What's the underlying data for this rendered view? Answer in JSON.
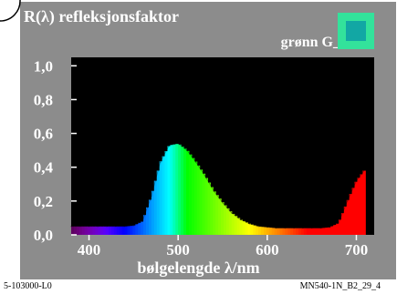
{
  "header": {
    "title": "R(λ) refleksjonsfaktor",
    "subtitle": "grønn G_"
  },
  "swatch": {
    "outer_color": "#33e29b",
    "inner_color": "#12a7a4"
  },
  "footer": {
    "left": "5-103000-L0",
    "right": "MN540-1N_B2_29_4"
  },
  "colors": {
    "panel": "#8c8c8c",
    "plot_bg": "#000000",
    "text": "#ffffff"
  },
  "chart_data": {
    "type": "area",
    "title": "R(λ) refleksjonsfaktor",
    "subtitle": "grønn G_",
    "xlabel": "bølgelengde λ/nm",
    "ylabel": "",
    "xlim": [
      380,
      720
    ],
    "ylim": [
      0,
      1.05
    ],
    "xticks": [
      400,
      500,
      600,
      700
    ],
    "yticks": [
      0.0,
      0.2,
      0.4,
      0.6,
      0.8,
      1.0
    ],
    "ytick_labels": [
      "0,0",
      "0,2",
      "0,4",
      "0,6",
      "0,8",
      "1,0"
    ],
    "grid": false,
    "series": [
      {
        "x": [
          380,
          390,
          400,
          410,
          420,
          430,
          440,
          450,
          460,
          470,
          480,
          490,
          500,
          510,
          520,
          530,
          540,
          550,
          560,
          570,
          580,
          590,
          600,
          610,
          620,
          630,
          640,
          650,
          660,
          670,
          680,
          690,
          700,
          710
        ],
        "values": [
          0.05,
          0.05,
          0.05,
          0.05,
          0.05,
          0.05,
          0.05,
          0.055,
          0.08,
          0.23,
          0.43,
          0.53,
          0.54,
          0.5,
          0.43,
          0.35,
          0.26,
          0.19,
          0.13,
          0.09,
          0.065,
          0.05,
          0.045,
          0.04,
          0.04,
          0.04,
          0.04,
          0.04,
          0.04,
          0.045,
          0.07,
          0.2,
          0.32,
          0.39
        ]
      }
    ]
  }
}
